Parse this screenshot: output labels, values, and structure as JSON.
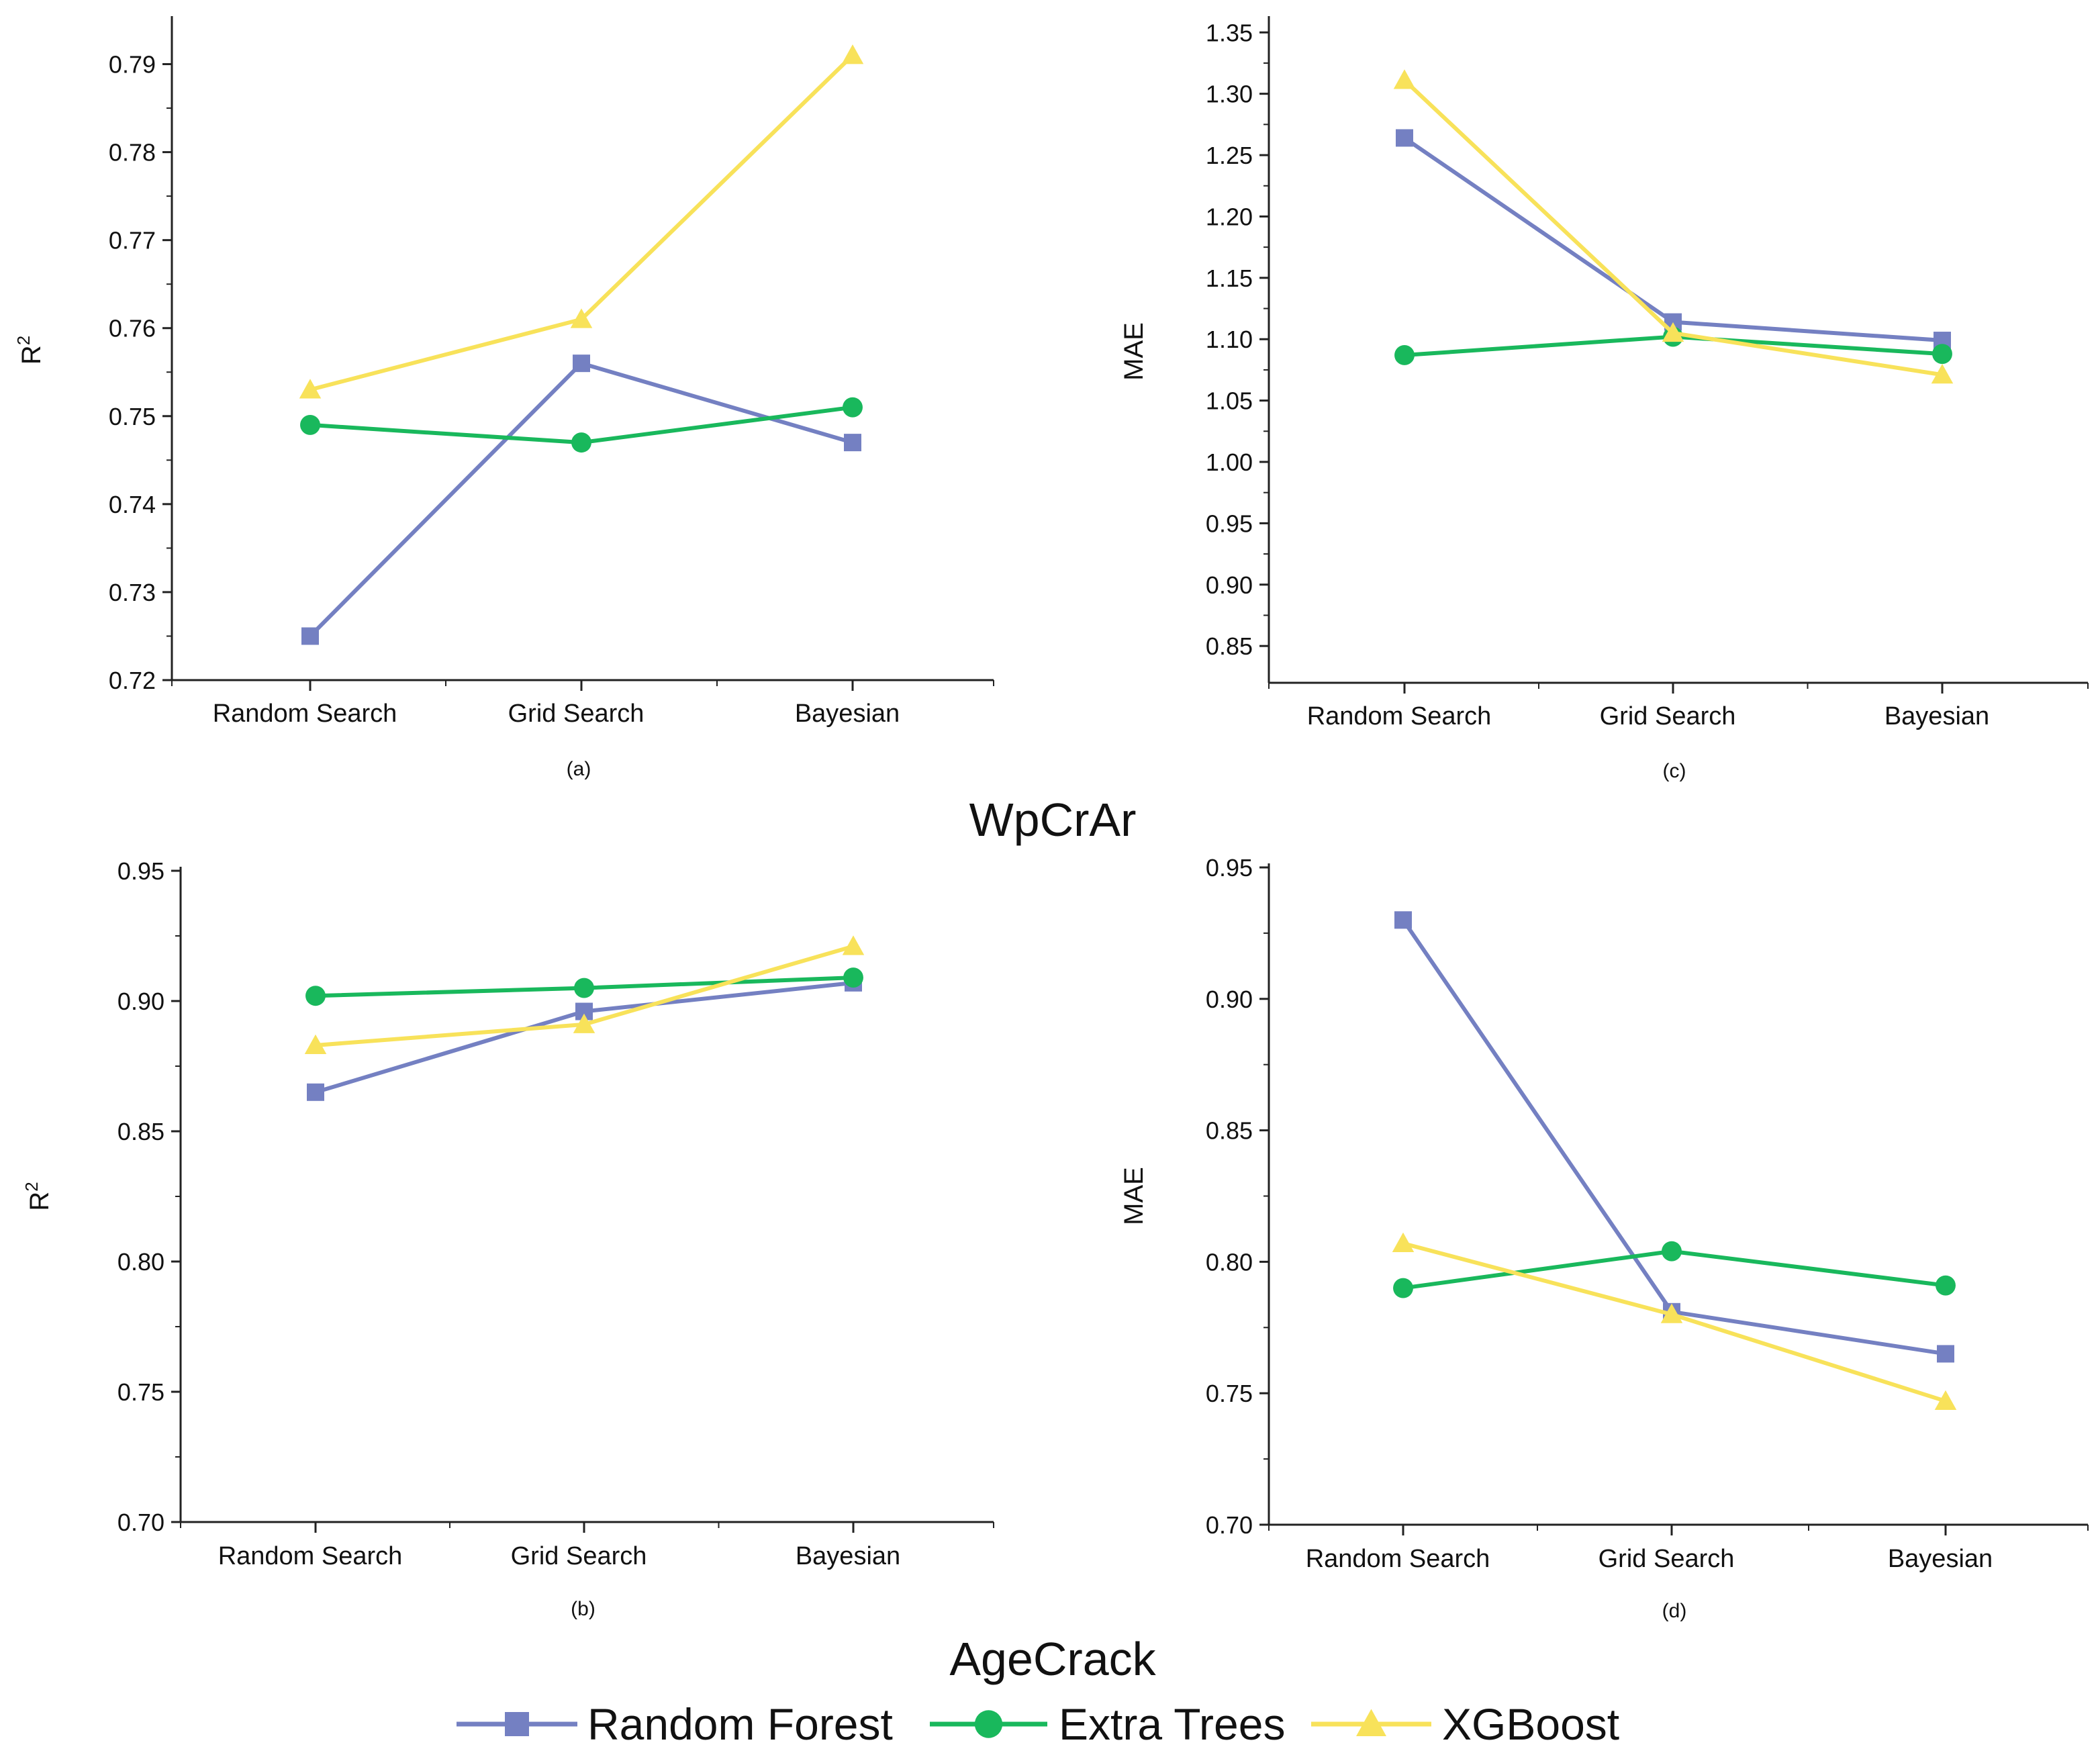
{
  "groups": {
    "top": "WpCrAr",
    "bottom": "AgeCrack"
  },
  "legend": [
    {
      "name": "Random Forest",
      "color": "#7480c2",
      "marker": "square"
    },
    {
      "name": "Extra Trees",
      "color": "#19b85c",
      "marker": "circle"
    },
    {
      "name": "XGBoost",
      "color": "#f8e25a",
      "marker": "triangle"
    }
  ],
  "chart_data": [
    {
      "id": "a",
      "type": "line",
      "sublabel": "(a)",
      "ylabel": "R",
      "ylabel_sup": "2",
      "categories": [
        "Random Search",
        "Grid Search",
        "Bayesian"
      ],
      "ylim": [
        0.72,
        0.795
      ],
      "yticks": [
        "0.72",
        "0.73",
        "0.74",
        "0.75",
        "0.76",
        "0.77",
        "0.78",
        "0.79"
      ],
      "series": [
        {
          "name": "Random Forest",
          "values": [
            0.725,
            0.756,
            0.747
          ]
        },
        {
          "name": "Extra Trees",
          "values": [
            0.749,
            0.747,
            0.751
          ]
        },
        {
          "name": "XGBoost",
          "values": [
            0.753,
            0.761,
            0.791
          ]
        }
      ]
    },
    {
      "id": "c",
      "type": "line",
      "sublabel": "(c)",
      "ylabel": "MAE",
      "ylabel_sup": "",
      "categories": [
        "Random Search",
        "Grid Search",
        "Bayesian"
      ],
      "ylim": [
        0.82,
        1.36
      ],
      "yticks": [
        "0.85",
        "0.90",
        "0.95",
        "1.00",
        "1.05",
        "1.10",
        "1.15",
        "1.20",
        "1.25",
        "1.30",
        "1.35"
      ],
      "series": [
        {
          "name": "Random Forest",
          "values": [
            1.264,
            1.114,
            1.099
          ]
        },
        {
          "name": "Extra Trees",
          "values": [
            1.087,
            1.102,
            1.088
          ]
        },
        {
          "name": "XGBoost",
          "values": [
            1.311,
            1.105,
            1.071
          ]
        }
      ]
    },
    {
      "id": "b",
      "type": "line",
      "sublabel": "(b)",
      "ylabel": "R",
      "ylabel_sup": "2",
      "categories": [
        "Random Search",
        "Grid Search",
        "Bayesian"
      ],
      "ylim": [
        0.7,
        0.95
      ],
      "yticks": [
        "0.70",
        "0.75",
        "0.80",
        "0.85",
        "0.90",
        "0.95"
      ],
      "series": [
        {
          "name": "Random Forest",
          "values": [
            0.865,
            0.896,
            0.907
          ]
        },
        {
          "name": "Extra Trees",
          "values": [
            0.902,
            0.905,
            0.909
          ]
        },
        {
          "name": "XGBoost",
          "values": [
            0.883,
            0.891,
            0.921
          ]
        }
      ]
    },
    {
      "id": "d",
      "type": "line",
      "sublabel": "(d)",
      "ylabel": "MAE",
      "ylabel_sup": "",
      "categories": [
        "Random Search",
        "Grid Search",
        "Bayesian"
      ],
      "ylim": [
        0.7,
        0.95
      ],
      "yticks": [
        "0.70",
        "0.75",
        "0.80",
        "0.85",
        "0.90",
        "0.95"
      ],
      "series": [
        {
          "name": "Random Forest",
          "values": [
            0.93,
            0.781,
            0.765
          ]
        },
        {
          "name": "Extra Trees",
          "values": [
            0.79,
            0.804,
            0.791
          ]
        },
        {
          "name": "XGBoost",
          "values": [
            0.807,
            0.78,
            0.747
          ]
        }
      ]
    }
  ]
}
